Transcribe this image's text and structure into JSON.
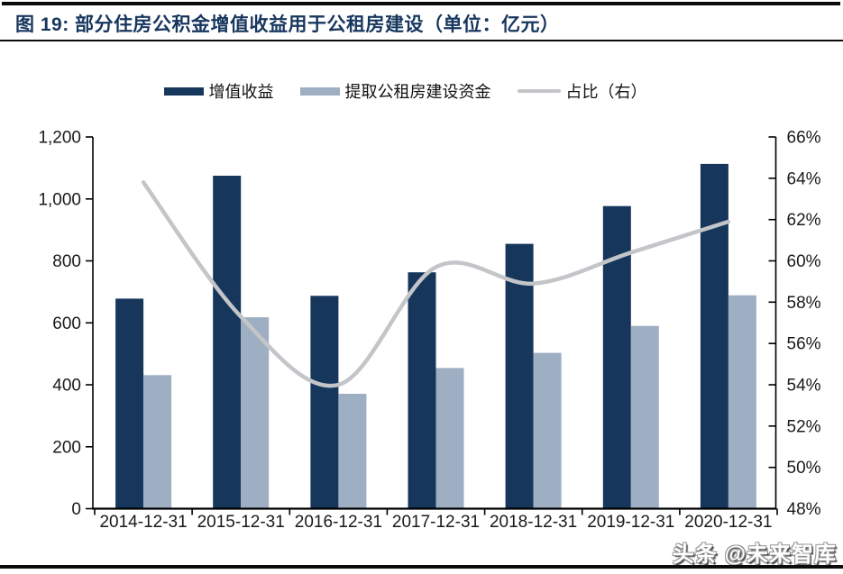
{
  "page": {
    "title": "图 19:  部分住房公积金增值收益用于公租房建设（单位：亿元）",
    "watermark": "头条 @未来智库"
  },
  "colors": {
    "bar_primary": "#16365c",
    "bar_secondary": "#9fafc3",
    "line": "#c3c5c9",
    "title_text": "#17365e",
    "axis_line": "#000000",
    "axis_text": "#1a1a1a"
  },
  "legend": [
    {
      "label": "增值收益",
      "swatch": "rect",
      "color": "#16365c"
    },
    {
      "label": "提取公租房建设资金",
      "swatch": "rect",
      "color": "#9fafc3"
    },
    {
      "label": "占比（右）",
      "swatch": "line",
      "color": "#c3c5c9"
    }
  ],
  "chart_data": {
    "type": "bar",
    "subtype": "grouped bars with smooth line on secondary axis",
    "title": "部分住房公积金增值收益用于公租房建设（单位：亿元）",
    "categories": [
      "2014-12-31",
      "2015-12-31",
      "2016-12-31",
      "2017-12-31",
      "2018-12-31",
      "2019-12-31",
      "2020-12-31"
    ],
    "series": [
      {
        "name": "增值收益",
        "type": "bar",
        "axis": "left",
        "color": "#16365c",
        "values": [
          678,
          1075,
          687,
          763,
          855,
          977,
          1113
        ]
      },
      {
        "name": "提取公租房建设资金",
        "type": "bar",
        "axis": "left",
        "color": "#9fafc3",
        "values": [
          431,
          618,
          371,
          454,
          503,
          590,
          689
        ]
      },
      {
        "name": "占比（右）",
        "type": "line",
        "axis": "right",
        "color": "#c3c5c9",
        "values": [
          63.8,
          57.3,
          54.0,
          59.7,
          58.9,
          60.4,
          61.9
        ],
        "unit": "%"
      }
    ],
    "left_axis": {
      "min": 0,
      "max": 1200,
      "step": 200,
      "tick_labels": [
        "0",
        "200",
        "400",
        "600",
        "800",
        "1,000",
        "1,200"
      ]
    },
    "right_axis": {
      "min": 48,
      "max": 66,
      "step": 2,
      "tick_labels": [
        "48%",
        "50%",
        "52%",
        "54%",
        "56%",
        "58%",
        "60%",
        "62%",
        "64%",
        "66%"
      ]
    },
    "grid": false,
    "legend_position": "top"
  }
}
